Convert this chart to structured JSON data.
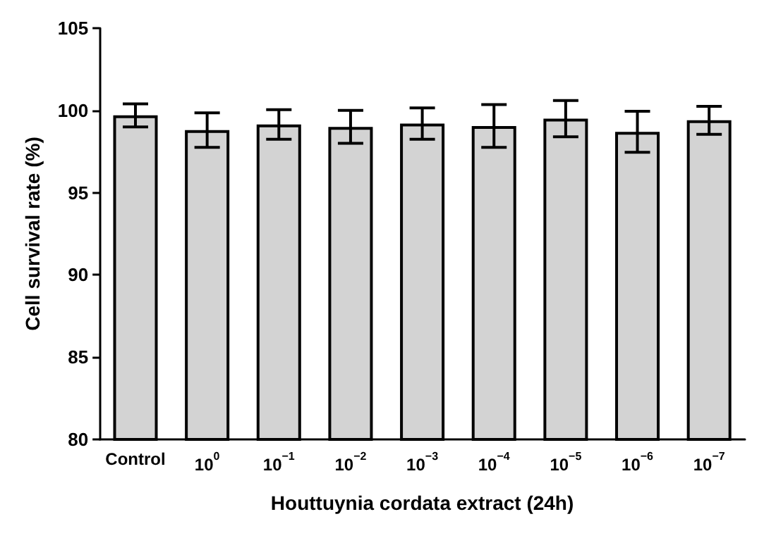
{
  "chart_data": {
    "type": "bar",
    "xlabel": "Houttuynia cordata extract (24h)",
    "ylabel": "Cell survival rate (%)",
    "categories": [
      "Control",
      "10$^{0}$",
      "10$^{−1}$",
      "10$^{−2}$",
      "10$^{−3}$",
      "10$^{−4}$",
      "10$^{−5}$",
      "10$^{−6}$",
      "10$^{−7}$"
    ],
    "values": [
      99.7,
      98.8,
      99.15,
      99.0,
      99.2,
      99.05,
      99.5,
      98.7,
      99.4
    ],
    "errors": [
      0.7,
      1.05,
      0.9,
      1.0,
      0.95,
      1.3,
      1.1,
      1.25,
      0.85
    ],
    "color": "#d3d3d3",
    "ylim": [
      80,
      105
    ],
    "yticks": [
      80,
      85,
      90,
      95,
      100,
      105
    ],
    "grid": false
  }
}
